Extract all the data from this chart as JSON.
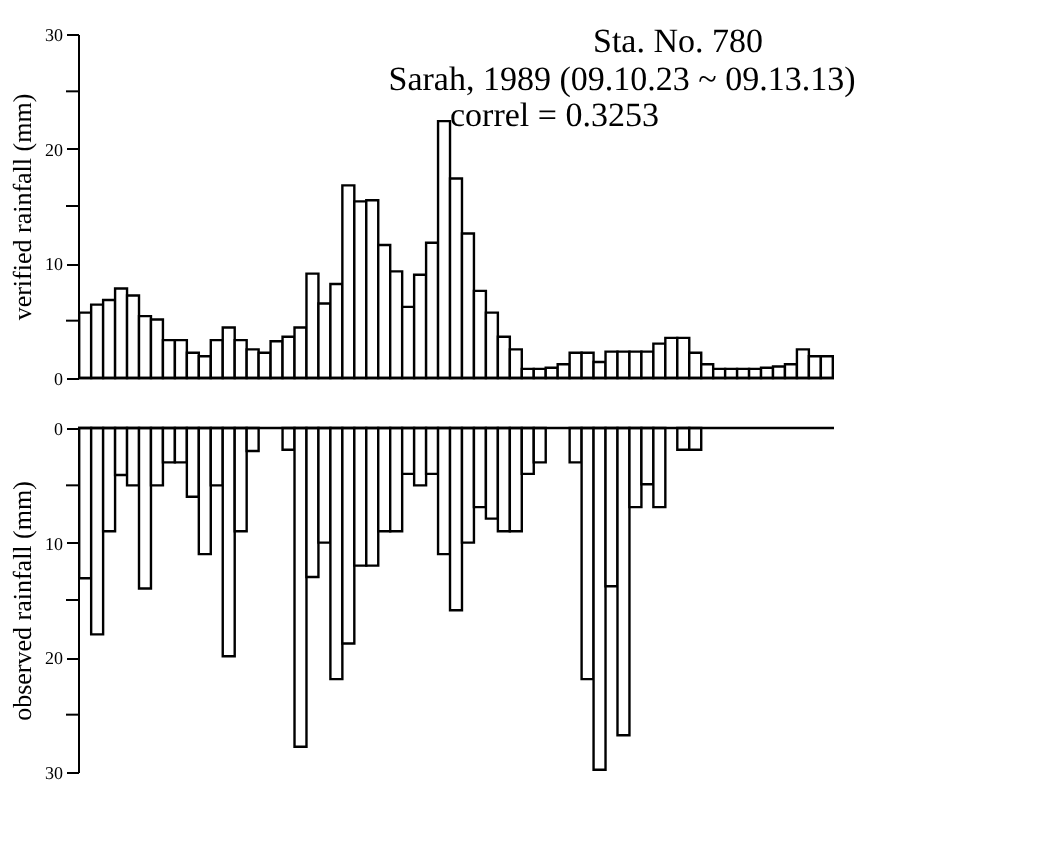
{
  "chart_data": [
    {
      "type": "bar",
      "ylabel": "verified rainfall (mm)",
      "annotations": [
        "Sta. No. 780",
        "Sarah, 1989 (09.10.23 ~ 09.13.13)",
        "correl = 0.3253"
      ],
      "categories": [
        null,
        null,
        null,
        null,
        null,
        null,
        null,
        null,
        null,
        null,
        null,
        null,
        null,
        null,
        null,
        null,
        null,
        null,
        null,
        null,
        null,
        null,
        null,
        null,
        null,
        null,
        null,
        null,
        null,
        null,
        null,
        null,
        null,
        null,
        null,
        null,
        null,
        null,
        null,
        null,
        null,
        null,
        null,
        null,
        null,
        null,
        null,
        null,
        null,
        null,
        null,
        null,
        null,
        null,
        null,
        null,
        null,
        null,
        null,
        null,
        null,
        null,
        null
      ],
      "series": [
        {
          "color": "#ffffff",
          "values": [
            5.7,
            6.4,
            6.8,
            7.8,
            7.2,
            5.4,
            5.1,
            3.3,
            3.3,
            2.2,
            1.9,
            3.3,
            4.4,
            3.3,
            2.5,
            2.2,
            3.2,
            3.6,
            4.4,
            9.1,
            6.5,
            8.2,
            16.8,
            15.4,
            15.5,
            11.6,
            9.3,
            6.2,
            9.0,
            11.8,
            22.4,
            17.4,
            12.6,
            7.6,
            5.7,
            3.6,
            2.5,
            0.8,
            0.8,
            0.9,
            1.2,
            2.2,
            2.2,
            1.4,
            2.3,
            2.3,
            2.3,
            2.3,
            3.0,
            3.5,
            3.5,
            2.2,
            1.2,
            0.8,
            0.8,
            0.8,
            0.8,
            0.9,
            1.0,
            1.2,
            2.5,
            1.9,
            1.9
          ]
        }
      ],
      "ylim": [
        0,
        30
      ],
      "yticks": [
        0,
        {
          "value": 5,
          "label": null
        },
        10,
        {
          "value": 15,
          "label": null
        },
        20,
        {
          "value": 25,
          "label": null
        },
        30
      ],
      "grid": false,
      "tick_labels": "y"
    },
    {
      "type": "bar",
      "ylabel": "observed rainfall (mm)",
      "categories": [
        null,
        null,
        null,
        null,
        null,
        null,
        null,
        null,
        null,
        null,
        null,
        null,
        null,
        null,
        null,
        null,
        null,
        null,
        null,
        null,
        null,
        null,
        null,
        null,
        null,
        null,
        null,
        null,
        null,
        null,
        null,
        null,
        null,
        null,
        null,
        null,
        null,
        null,
        null,
        null,
        null,
        null,
        null,
        null,
        null,
        null,
        null,
        null,
        null,
        null,
        null,
        null,
        null,
        null,
        null,
        null,
        null,
        null,
        null,
        null,
        null,
        null,
        null
      ],
      "series": [
        {
          "color": "#ffffff",
          "values": [
            13.1,
            18.0,
            9.0,
            4.1,
            5.0,
            14.0,
            5.0,
            3.0,
            3.0,
            6.0,
            11.0,
            5.0,
            19.9,
            9.0,
            2.0,
            null,
            null,
            1.9,
            27.8,
            13.0,
            10.0,
            21.9,
            18.8,
            12.0,
            12.0,
            9.0,
            9.0,
            4.0,
            5.0,
            4.0,
            11.0,
            15.9,
            10.0,
            6.9,
            7.9,
            9.0,
            9.0,
            4.0,
            3.0,
            null,
            null,
            3.0,
            21.9,
            29.8,
            13.8,
            26.8,
            6.9,
            4.9,
            6.9,
            null,
            1.9,
            1.9,
            null,
            null,
            null,
            null,
            null,
            null,
            null,
            null,
            null,
            null,
            null
          ]
        }
      ],
      "ylim": [
        30,
        0
      ],
      "yticks": [
        0,
        {
          "value": 5,
          "label": null
        },
        10,
        {
          "value": 15,
          "label": null
        },
        20,
        {
          "value": 25,
          "label": null
        },
        30
      ],
      "grid": false,
      "tick_labels": "y"
    }
  ]
}
